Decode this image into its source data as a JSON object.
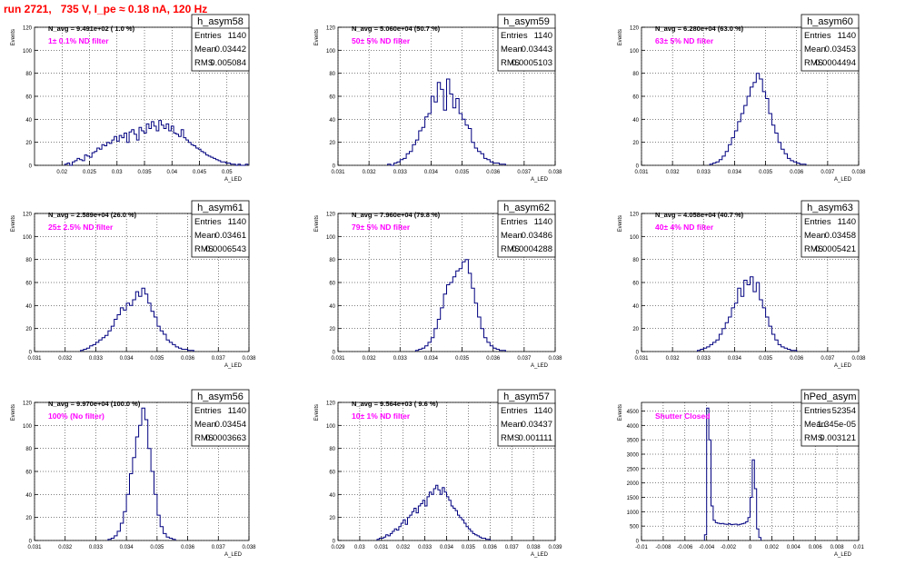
{
  "title": "run 2721,   735 V, I_pe ≈ 0.18 nA, 120 Hz",
  "colors": {
    "histogram": "#000080",
    "title": "#ff0000",
    "filter": "#ff00ff",
    "grid": "#000000"
  },
  "chart_data": [
    {
      "type": "bar",
      "name": "h_asym58",
      "stats": {
        "entries": "1140",
        "mean": "0.03442",
        "rms": "0.005084"
      },
      "navg": "N_avg = 9.491e+02 ( 1.0 %)",
      "filter": "1± 0.1% ND filter",
      "xlim": [
        0.015,
        0.054
      ],
      "ylim": [
        0,
        120
      ],
      "xticks": [
        0.02,
        0.025,
        0.03,
        0.035,
        0.04,
        0.045,
        0.05
      ],
      "xticklabels": [
        "0.02",
        "0.025",
        "0.03",
        "0.035",
        "0.04",
        "0.045",
        "0.05"
      ],
      "yticks": [
        0,
        20,
        40,
        60,
        80,
        100,
        120
      ],
      "xlabel": "A_LED",
      "ylabel": "Events",
      "bins": {
        "start": 0.0205,
        "width": 0.00045,
        "values": [
          1,
          2,
          0,
          3,
          4,
          6,
          5,
          4,
          9,
          8,
          7,
          11,
          12,
          15,
          14,
          18,
          17,
          20,
          19,
          22,
          25,
          21,
          26,
          24,
          28,
          20,
          29,
          31,
          27,
          22,
          33,
          30,
          28,
          36,
          32,
          38,
          34,
          30,
          39,
          35,
          32,
          36,
          30,
          34,
          28,
          27,
          25,
          31,
          24,
          22,
          20,
          18,
          17,
          15,
          14,
          12,
          11,
          9,
          8,
          7,
          6,
          5,
          4,
          3,
          3,
          2,
          2,
          1,
          1,
          0,
          1,
          0,
          0,
          1
        ]
      }
    },
    {
      "type": "bar",
      "name": "h_asym59",
      "stats": {
        "entries": "1140",
        "mean": "0.03443",
        "rms": "0.0005103"
      },
      "navg": "N_avg = 5.060e+04 (50.7 %)",
      "filter": "50± 5% ND filter",
      "xlim": [
        0.031,
        0.038
      ],
      "ylim": [
        0,
        120
      ],
      "xticks": [
        0.031,
        0.032,
        0.033,
        0.034,
        0.035,
        0.036,
        0.037,
        0.038
      ],
      "xticklabels": [
        "0.031",
        "0.032",
        "0.033",
        "0.034",
        "0.035",
        "0.036",
        "0.037",
        "0.038"
      ],
      "yticks": [
        0,
        20,
        40,
        60,
        80,
        100,
        120
      ],
      "xlabel": "A_LED",
      "ylabel": "Events",
      "bins": {
        "start": 0.0326,
        "width": 0.0001,
        "values": [
          1,
          0,
          2,
          3,
          5,
          6,
          10,
          12,
          18,
          22,
          30,
          33,
          42,
          45,
          60,
          55,
          72,
          66,
          48,
          75,
          62,
          50,
          58,
          45,
          40,
          35,
          32,
          20,
          15,
          12,
          10,
          6,
          5,
          3,
          2,
          2,
          1,
          1
        ]
      }
    },
    {
      "type": "bar",
      "name": "h_asym60",
      "stats": {
        "entries": "1140",
        "mean": "0.03453",
        "rms": "0.0004494"
      },
      "navg": "N_avg = 6.280e+04 (63.0 %)",
      "filter": "63± 5% ND filter",
      "xlim": [
        0.031,
        0.038
      ],
      "ylim": [
        0,
        120
      ],
      "xticks": [
        0.031,
        0.032,
        0.033,
        0.034,
        0.035,
        0.036,
        0.037,
        0.038
      ],
      "xticklabels": [
        "0.031",
        "0.032",
        "0.033",
        "0.034",
        "0.035",
        "0.036",
        "0.037",
        "0.038"
      ],
      "yticks": [
        0,
        20,
        40,
        60,
        80,
        100,
        120
      ],
      "xlabel": "A_LED",
      "ylabel": "Events",
      "bins": {
        "start": 0.0332,
        "width": 0.0001,
        "values": [
          1,
          2,
          3,
          5,
          8,
          12,
          18,
          24,
          30,
          38,
          45,
          52,
          60,
          68,
          72,
          80,
          75,
          64,
          58,
          45,
          35,
          28,
          20,
          14,
          10,
          6,
          4,
          3,
          2,
          1,
          1
        ]
      }
    },
    {
      "type": "bar",
      "name": "h_asym61",
      "stats": {
        "entries": "1140",
        "mean": "0.03461",
        "rms": "0.0006543"
      },
      "navg": "N_avg = 2.589e+04 (26.0 %)",
      "filter": "25± 2.5% ND filter",
      "xlim": [
        0.031,
        0.038
      ],
      "ylim": [
        0,
        120
      ],
      "xticks": [
        0.031,
        0.032,
        0.033,
        0.034,
        0.035,
        0.036,
        0.037,
        0.038
      ],
      "xticklabels": [
        "0.031",
        "0.032",
        "0.033",
        "0.034",
        "0.035",
        "0.036",
        "0.037",
        "0.038"
      ],
      "yticks": [
        0,
        20,
        40,
        60,
        80,
        100,
        120
      ],
      "xlabel": "A_LED",
      "ylabel": "Events",
      "bins": {
        "start": 0.0325,
        "width": 0.0001,
        "values": [
          1,
          2,
          3,
          5,
          6,
          8,
          10,
          12,
          14,
          18,
          22,
          28,
          32,
          38,
          36,
          42,
          40,
          45,
          52,
          48,
          55,
          50,
          42,
          35,
          30,
          22,
          18,
          15,
          10,
          8,
          6,
          4,
          3,
          2,
          2,
          1,
          1
        ]
      }
    },
    {
      "type": "bar",
      "name": "h_asym62",
      "stats": {
        "entries": "1140",
        "mean": "0.03486",
        "rms": "0.0004288"
      },
      "navg": "N_avg = 7.960e+04 (79.8 %)",
      "filter": "79± 5% ND filter",
      "xlim": [
        0.031,
        0.038
      ],
      "ylim": [
        0,
        120
      ],
      "xticks": [
        0.031,
        0.032,
        0.033,
        0.034,
        0.035,
        0.036,
        0.037,
        0.038
      ],
      "xticklabels": [
        "0.031",
        "0.032",
        "0.033",
        "0.034",
        "0.035",
        "0.036",
        "0.037",
        "0.038"
      ],
      "yticks": [
        0,
        20,
        40,
        60,
        80,
        100,
        120
      ],
      "xlabel": "A_LED",
      "ylabel": "Events",
      "bins": {
        "start": 0.0335,
        "width": 0.0001,
        "values": [
          1,
          2,
          3,
          5,
          8,
          12,
          20,
          28,
          38,
          50,
          58,
          60,
          65,
          70,
          72,
          78,
          80,
          68,
          55,
          42,
          30,
          20,
          12,
          8,
          5,
          3,
          2,
          1,
          1
        ]
      }
    },
    {
      "type": "bar",
      "name": "h_asym63",
      "stats": {
        "entries": "1140",
        "mean": "0.03458",
        "rms": "0.0005421"
      },
      "navg": "N_avg = 4.058e+04 (40.7 %)",
      "filter": "40± 4% ND filter",
      "xlim": [
        0.031,
        0.038
      ],
      "ylim": [
        0,
        120
      ],
      "xticks": [
        0.031,
        0.032,
        0.033,
        0.034,
        0.035,
        0.036,
        0.037,
        0.038
      ],
      "xticklabels": [
        "0.031",
        "0.032",
        "0.033",
        "0.034",
        "0.035",
        "0.036",
        "0.037",
        "0.038"
      ],
      "yticks": [
        0,
        20,
        40,
        60,
        80,
        100,
        120
      ],
      "xlabel": "A_LED",
      "ylabel": "Events",
      "bins": {
        "start": 0.0328,
        "width": 0.0001,
        "values": [
          1,
          2,
          3,
          4,
          6,
          8,
          10,
          15,
          20,
          25,
          30,
          38,
          42,
          55,
          48,
          62,
          58,
          65,
          52,
          60,
          45,
          38,
          30,
          22,
          15,
          10,
          6,
          4,
          3,
          2,
          1,
          1
        ]
      }
    },
    {
      "type": "bar",
      "name": "h_asym56",
      "stats": {
        "entries": "1140",
        "mean": "0.03454",
        "rms": "0.0003663"
      },
      "navg": "N_avg = 9.970e+04 (100.0 %)",
      "filter": "100% (No filter)",
      "xlim": [
        0.031,
        0.038
      ],
      "ylim": [
        0,
        120
      ],
      "xticks": [
        0.031,
        0.032,
        0.033,
        0.034,
        0.035,
        0.036,
        0.037,
        0.038
      ],
      "xticklabels": [
        "0.031",
        "0.032",
        "0.033",
        "0.034",
        "0.035",
        "0.036",
        "0.037",
        "0.038"
      ],
      "yticks": [
        0,
        20,
        40,
        60,
        80,
        100,
        120
      ],
      "xlabel": "A_LED",
      "ylabel": "Events",
      "bins": {
        "start": 0.0334,
        "width": 0.0001,
        "values": [
          1,
          2,
          4,
          8,
          15,
          25,
          40,
          58,
          72,
          90,
          100,
          115,
          105,
          80,
          60,
          40,
          22,
          12,
          6,
          3,
          2,
          1
        ]
      }
    },
    {
      "type": "bar",
      "name": "h_asym57",
      "stats": {
        "entries": "1140",
        "mean": "0.03437",
        "rms": "0.001111"
      },
      "navg": "N_avg = 9.564e+03 ( 9.6 %)",
      "filter": "10± 1% ND filter",
      "xlim": [
        0.029,
        0.039
      ],
      "ylim": [
        0,
        120
      ],
      "xticks": [
        0.029,
        0.03,
        0.031,
        0.032,
        0.033,
        0.034,
        0.035,
        0.036,
        0.037,
        0.038,
        0.039
      ],
      "xticklabels": [
        "0.029",
        "0.03",
        "0.031",
        "0.032",
        "0.033",
        "0.034",
        "0.035",
        "0.036",
        "0.037",
        "0.038",
        "0.039"
      ],
      "yticks": [
        0,
        20,
        40,
        60,
        80,
        100,
        120
      ],
      "xlabel": "A_LED",
      "ylabel": "Events",
      "bins": {
        "start": 0.0308,
        "width": 0.0001,
        "values": [
          1,
          2,
          2,
          3,
          5,
          4,
          6,
          8,
          10,
          9,
          12,
          15,
          18,
          14,
          20,
          22,
          25,
          28,
          24,
          30,
          32,
          35,
          30,
          38,
          42,
          40,
          45,
          48,
          44,
          40,
          46,
          42,
          38,
          35,
          30,
          28,
          26,
          22,
          20,
          18,
          15,
          12,
          10,
          8,
          6,
          5,
          4,
          3,
          2,
          2,
          1,
          1
        ]
      }
    },
    {
      "type": "bar",
      "name": "hPed_asym",
      "stats": {
        "entries": "52354",
        "mean": "1.345e-05",
        "rms": "0.003121"
      },
      "navg": "",
      "filter": "Shutter Closed",
      "xlim": [
        -0.01,
        0.01
      ],
      "ylim": [
        0,
        4800
      ],
      "xticks": [
        -0.01,
        -0.008,
        -0.006,
        -0.004,
        -0.002,
        0,
        0.002,
        0.004,
        0.006,
        0.008,
        0.01
      ],
      "xticklabels": [
        "-0.01",
        "-0.008",
        "-0.006",
        "-0.004",
        "-0.002",
        "0",
        "0.002",
        "0.004",
        "0.006",
        "0.008",
        "0.01"
      ],
      "yticks": [
        0,
        500,
        1000,
        1500,
        2000,
        2500,
        3000,
        3500,
        4000,
        4500
      ],
      "xlabel": "A_LED",
      "ylabel": "Events",
      "bins": {
        "start": -0.0042,
        "width": 0.0002,
        "values": [
          200,
          4600,
          3500,
          1200,
          700,
          620,
          600,
          580,
          590,
          570,
          560,
          580,
          550,
          560,
          570,
          540,
          560,
          580,
          600,
          650,
          800,
          1500,
          2800,
          1800,
          400,
          100
        ]
      }
    }
  ]
}
